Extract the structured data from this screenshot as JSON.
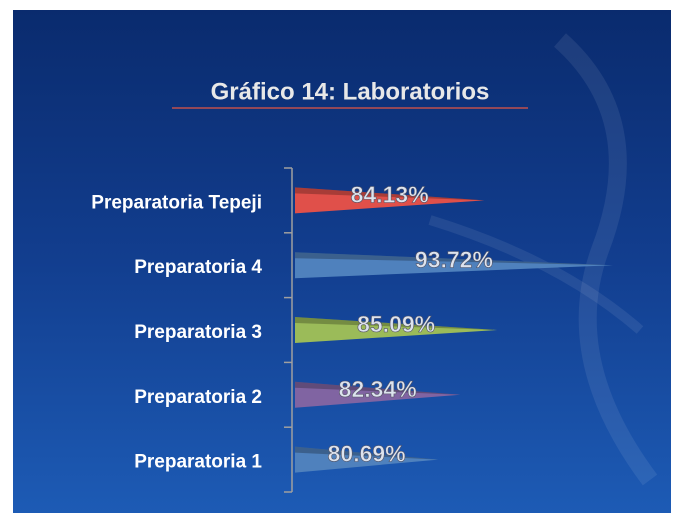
{
  "chart_data": {
    "type": "bar",
    "orientation": "horizontal",
    "title": "Gráfico 14:  Laboratorios",
    "categories": [
      "Preparatoria 1",
      "Preparatoria 2",
      "Preparatoria 3",
      "Preparatoria 4",
      "Preparatoria Tepeji"
    ],
    "values": [
      80.69,
      82.34,
      85.09,
      93.72,
      84.13
    ],
    "value_labels": [
      "80.69%",
      "82.34%",
      "85.09%",
      "93.72%",
      "84.13%"
    ],
    "colors": [
      "#4f81bd",
      "#8064a2",
      "#9bbb59",
      "#4f81bd",
      "#e0504a"
    ],
    "xlim": [
      70,
      95
    ]
  }
}
